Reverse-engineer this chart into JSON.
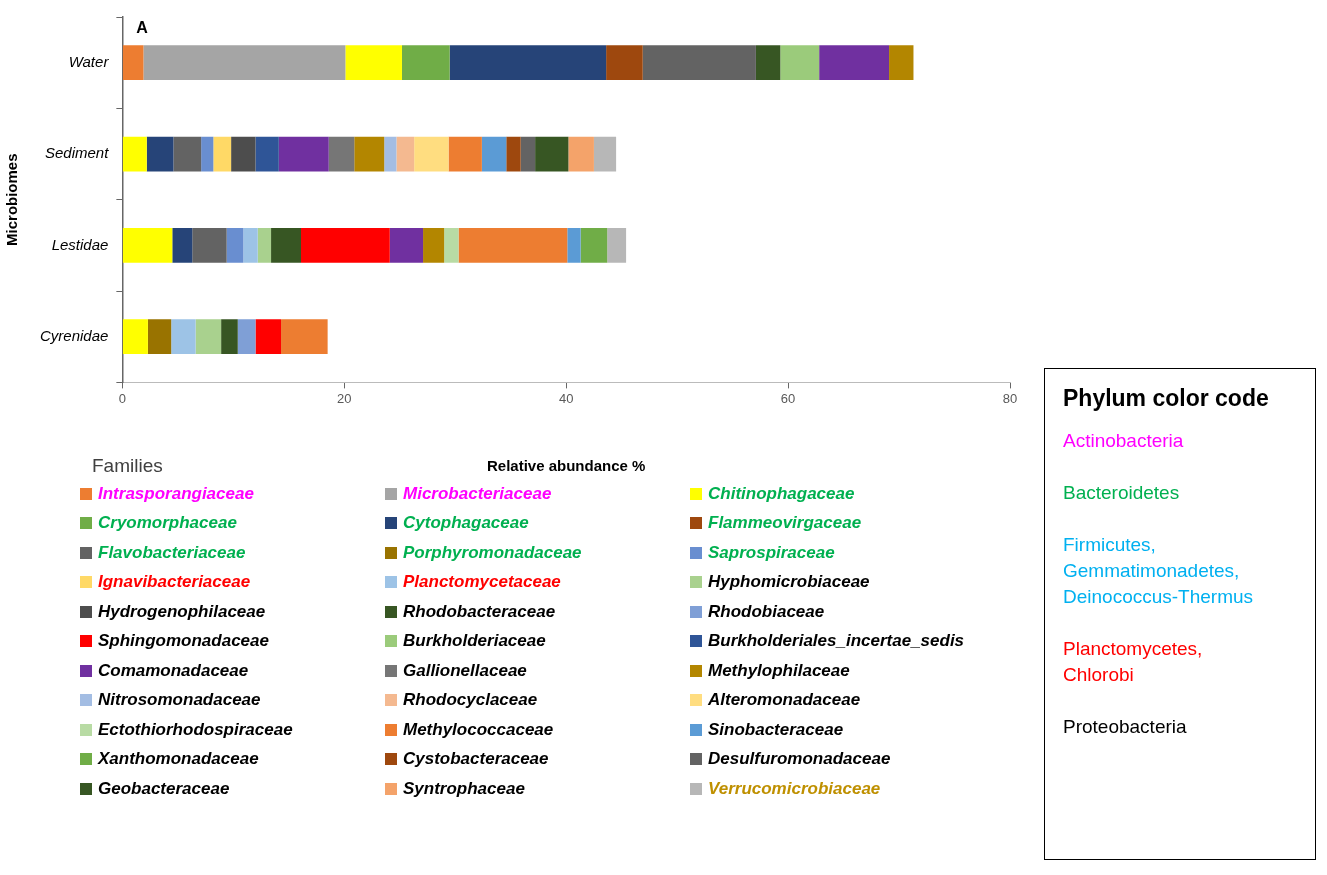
{
  "chart_data": [
    {
      "type": "bar",
      "title": "A",
      "xlabel": "Relative abundance %",
      "ylabel": "Microbiomes",
      "legend_title": "Families",
      "orientation": "horizontal",
      "stacked": true,
      "legend": "bottom",
      "grid": false,
      "categories": [
        "Water",
        "Sediment",
        "Lestidae",
        "Cyrenidae"
      ],
      "xlim": [
        0,
        80
      ],
      "xticks": [
        0,
        20,
        40,
        60,
        80
      ],
      "series": [
        {
          "name": "Intrasporangiaceae",
          "color": "#ed7d31",
          "values": [
            1.9,
            null,
            null,
            null
          ]
        },
        {
          "name": "Microbacteriaceae",
          "color": "#a5a5a5",
          "values": [
            18.2,
            null,
            null,
            null
          ]
        },
        {
          "name": "Chitinophagaceae",
          "color": "#ffff00",
          "values": [
            5.1,
            2.2,
            4.5,
            2.3
          ]
        },
        {
          "name": "Cryomorphaceae",
          "color": "#70ad47",
          "values": [
            4.3,
            null,
            null,
            null
          ]
        },
        {
          "name": "Cytophagaceae",
          "color": "#264478",
          "values": [
            14.1,
            2.4,
            1.8,
            null
          ]
        },
        {
          "name": "Flammeovirgaceae",
          "color": "#9e480e",
          "values": [
            3.3,
            null,
            null,
            null
          ]
        },
        {
          "name": "Flavobacteriaceae",
          "color": "#636363",
          "values": [
            10.2,
            2.5,
            3.1,
            null
          ]
        },
        {
          "name": "Porphyromonadaceae",
          "color": "#997300",
          "values": [
            null,
            null,
            null,
            2.1
          ]
        },
        {
          "name": "Saprospiraceae",
          "color": "#698ed0",
          "values": [
            null,
            1.1,
            1.5,
            null
          ]
        },
        {
          "name": "Ignavibacteriaceae",
          "color": "#ffd966",
          "values": [
            null,
            1.6,
            null,
            null
          ]
        },
        {
          "name": "Planctomycetaceae",
          "color": "#9dc3e6",
          "values": [
            null,
            null,
            1.3,
            2.2
          ]
        },
        {
          "name": "Hyphomicrobiaceae",
          "color": "#a9d18e",
          "values": [
            null,
            null,
            1.2,
            2.3
          ]
        },
        {
          "name": "Hydrogenophilaceae",
          "color": "#4d4d4d",
          "values": [
            null,
            2.2,
            null,
            null
          ]
        },
        {
          "name": "Rhodobacteraceae",
          "color": "#375623",
          "values": [
            2.2,
            null,
            2.7,
            1.5
          ]
        },
        {
          "name": "Rhodobiaceae",
          "color": "#7f9fd6",
          "values": [
            null,
            null,
            null,
            1.6
          ]
        },
        {
          "name": "Sphingomonadaceae",
          "color": "#ff0000",
          "values": [
            null,
            null,
            8.0,
            2.3
          ]
        },
        {
          "name": "Burkholderiaceae",
          "color": "#9bcb7b",
          "values": [
            3.5,
            null,
            null,
            null
          ]
        },
        {
          "name": "Burkholderiales_incertae_sedis",
          "color": "#2f5597",
          "values": [
            null,
            2.1,
            null,
            null
          ]
        },
        {
          "name": "Comamonadaceae",
          "color": "#7030a0",
          "values": [
            6.3,
            4.5,
            3.0,
            null
          ]
        },
        {
          "name": "Gallionellaceae",
          "color": "#767676",
          "values": [
            null,
            2.3,
            null,
            null
          ]
        },
        {
          "name": "Methylophilaceae",
          "color": "#b38600",
          "values": [
            2.2,
            2.7,
            1.9,
            null
          ]
        },
        {
          "name": "Nitrosomonadaceae",
          "color": "#a3bde3",
          "values": [
            null,
            1.1,
            null,
            null
          ]
        },
        {
          "name": "Rhodocyclaceae",
          "color": "#f4b990",
          "values": [
            null,
            1.6,
            null,
            null
          ]
        },
        {
          "name": "Alteromonadaceae",
          "color": "#ffdd80",
          "values": [
            null,
            3.1,
            null,
            null
          ]
        },
        {
          "name": "Ectothiorhodospiraceae",
          "color": "#b8dba4",
          "values": [
            null,
            null,
            1.3,
            null
          ]
        },
        {
          "name": "Methylococcaceae",
          "color": "#ed7d31",
          "values": [
            null,
            3.0,
            9.8,
            4.2
          ]
        },
        {
          "name": "Sinobacteraceae",
          "color": "#5b9bd5",
          "values": [
            null,
            2.2,
            1.2,
            null
          ]
        },
        {
          "name": "Xanthomonadaceae",
          "color": "#70ad47",
          "values": [
            null,
            null,
            2.4,
            null
          ]
        },
        {
          "name": "Cystobacteraceae",
          "color": "#9e480e",
          "values": [
            null,
            1.3,
            null,
            null
          ]
        },
        {
          "name": "Desulfuromonadaceae",
          "color": "#636363",
          "values": [
            null,
            1.3,
            null,
            null
          ]
        },
        {
          "name": "Geobacteraceae",
          "color": "#375623",
          "values": [
            null,
            3.0,
            null,
            null
          ]
        },
        {
          "name": "Syntrophaceae",
          "color": "#f4a36a",
          "values": [
            null,
            2.3,
            null,
            null
          ]
        },
        {
          "name": "Verrucomicrobiaceae",
          "color": "#b7b7b7",
          "values": [
            null,
            2.0,
            1.7,
            null
          ]
        }
      ]
    },
    {
      "type": "other",
      "title": "Phylum color code",
      "annotations": [
        "Actinobacteria",
        "Bacteroidetes",
        "Firmicutes, Gemmatimonadetes, Deinococcus-Thermus",
        "Planctomycetes, Chlorobi",
        "Proteobacteria"
      ]
    }
  ]
}
